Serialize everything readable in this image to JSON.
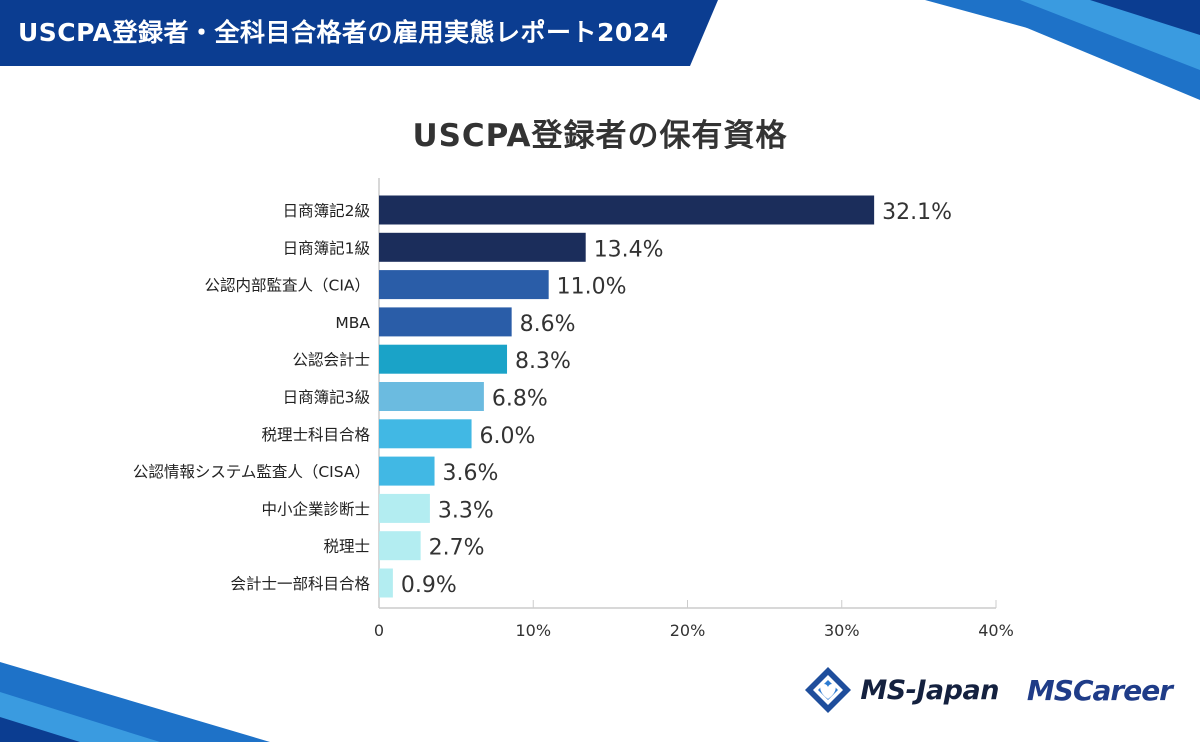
{
  "header": {
    "title": "USCPA登録者・全科目合格者の雇用実態レポート2024"
  },
  "colors": {
    "header_dark": "#0b3d91",
    "header_light": "#1e72c8",
    "axis": "#cccccc",
    "label_text": "#222222",
    "value_text": "#333333"
  },
  "chart_data": {
    "type": "bar",
    "orientation": "horizontal",
    "title": "USCPA登録者の保有資格",
    "categories": [
      "日商簿記2級",
      "日商簿記1級",
      "公認内部監査人（CIA）",
      "MBA",
      "公認会計士",
      "日商簿記3級",
      "税理士科目合格",
      "公認情報システム監査人（CISA）",
      "中小企業診断士",
      "税理士",
      "会計士一部科目合格"
    ],
    "values": [
      32.1,
      13.4,
      11.0,
      8.6,
      8.3,
      6.8,
      6.0,
      3.6,
      3.3,
      2.7,
      0.9
    ],
    "value_labels": [
      "32.1%",
      "13.4%",
      "11.0%",
      "8.6%",
      "8.3%",
      "6.8%",
      "6.0%",
      "3.6%",
      "3.3%",
      "2.7%",
      "0.9%"
    ],
    "bar_colors": [
      "#1b2d5b",
      "#1b2d5b",
      "#2a5da8",
      "#2a5da8",
      "#1aa3c8",
      "#6bbbe0",
      "#41b8e4",
      "#41b8e4",
      "#b3edf1",
      "#b3edf1",
      "#b3edf1"
    ],
    "xlim": [
      0,
      40
    ],
    "xticks": [
      0,
      10,
      20,
      30,
      40
    ],
    "xtick_labels": [
      "0",
      "10%",
      "20%",
      "30%",
      "40%"
    ],
    "xlabel": "",
    "ylabel": ""
  },
  "logos": {
    "ms_japan": "MS-Japan",
    "ms_career": "MSCareer"
  }
}
